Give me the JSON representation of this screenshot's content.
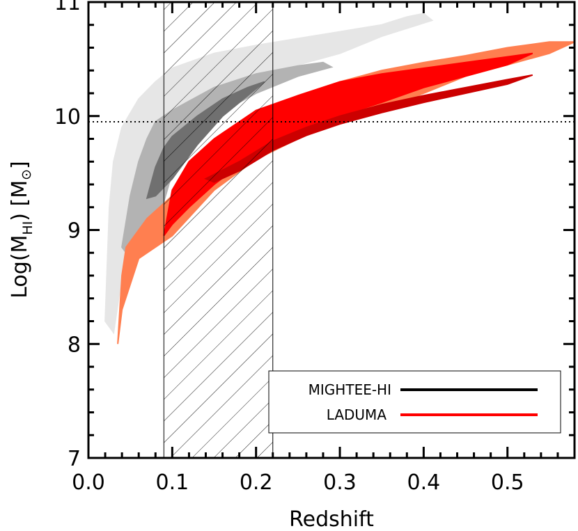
{
  "chart_data": {
    "type": "area",
    "xlabel": "Redshift",
    "ylabel_main": "Log(M",
    "ylabel_sub": "HI",
    "ylabel_tail": ")  [M",
    "ylabel_symbol": "⊙",
    "ylabel_close": "]",
    "xlim": [
      0.0,
      0.58
    ],
    "ylim": [
      7,
      11
    ],
    "xticks": [
      0.0,
      0.1,
      0.2,
      0.3,
      0.4,
      0.5
    ],
    "xtick_labels": [
      "0.0",
      "0.1",
      "0.2",
      "0.3",
      "0.4",
      "0.5"
    ],
    "yticks": [
      7,
      8,
      9,
      10,
      11
    ],
    "ytick_labels": [
      "7",
      "8",
      "9",
      "10",
      "11"
    ],
    "hline": {
      "y": 9.95,
      "style": "dotted"
    },
    "hatched_region": {
      "x": [
        0.09,
        0.22
      ]
    },
    "series": [
      {
        "name": "MIGHTEE-HI",
        "color": "#000000",
        "bands": [
          {
            "level": "outer",
            "color": "#e6e6e6",
            "upper": [
              [
                0.02,
                8.2
              ],
              [
                0.025,
                9.2
              ],
              [
                0.03,
                9.6
              ],
              [
                0.04,
                9.9
              ],
              [
                0.06,
                10.15
              ],
              [
                0.08,
                10.3
              ],
              [
                0.1,
                10.42
              ],
              [
                0.15,
                10.55
              ],
              [
                0.2,
                10.62
              ],
              [
                0.25,
                10.68
              ],
              [
                0.3,
                10.74
              ],
              [
                0.35,
                10.8
              ],
              [
                0.38,
                10.87
              ],
              [
                0.4,
                10.9
              ],
              [
                0.41,
                10.84
              ]
            ],
            "lower": [
              [
                0.41,
                10.84
              ],
              [
                0.35,
                10.7
              ],
              [
                0.3,
                10.55
              ],
              [
                0.25,
                10.45
              ],
              [
                0.2,
                10.33
              ],
              [
                0.15,
                10.2
              ],
              [
                0.1,
                9.95
              ],
              [
                0.07,
                9.5
              ],
              [
                0.05,
                9.0
              ],
              [
                0.04,
                8.6
              ],
              [
                0.03,
                8.1
              ]
            ]
          },
          {
            "level": "middle",
            "color": "#b3b3b3",
            "upper": [
              [
                0.04,
                8.85
              ],
              [
                0.05,
                9.3
              ],
              [
                0.06,
                9.6
              ],
              [
                0.07,
                9.8
              ],
              [
                0.08,
                9.95
              ],
              [
                0.1,
                10.05
              ],
              [
                0.15,
                10.25
              ],
              [
                0.2,
                10.37
              ],
              [
                0.25,
                10.44
              ],
              [
                0.28,
                10.47
              ],
              [
                0.29,
                10.43
              ]
            ],
            "lower": [
              [
                0.29,
                10.43
              ],
              [
                0.25,
                10.35
              ],
              [
                0.2,
                10.2
              ],
              [
                0.15,
                10.0
              ],
              [
                0.12,
                9.75
              ],
              [
                0.1,
                9.5
              ],
              [
                0.09,
                9.25
              ],
              [
                0.08,
                9.05
              ],
              [
                0.06,
                8.9
              ],
              [
                0.045,
                8.8
              ]
            ]
          },
          {
            "level": "inner",
            "color": "#707070",
            "upper": [
              [
                0.07,
                9.28
              ],
              [
                0.08,
                9.55
              ],
              [
                0.09,
                9.72
              ],
              [
                0.1,
                9.82
              ],
              [
                0.13,
                10.0
              ],
              [
                0.16,
                10.15
              ],
              [
                0.19,
                10.25
              ],
              [
                0.21,
                10.3
              ]
            ],
            "lower": [
              [
                0.21,
                10.3
              ],
              [
                0.19,
                10.18
              ],
              [
                0.16,
                10.0
              ],
              [
                0.13,
                9.75
              ],
              [
                0.11,
                9.55
              ],
              [
                0.1,
                9.45
              ],
              [
                0.08,
                9.3
              ]
            ]
          }
        ]
      },
      {
        "name": "LADUMA",
        "color": "#ff0000",
        "bands": [
          {
            "level": "outer",
            "color": "#ff7f50",
            "upper": [
              [
                0.035,
                8.0
              ],
              [
                0.04,
                8.6
              ],
              [
                0.045,
                8.85
              ],
              [
                0.07,
                9.1
              ],
              [
                0.1,
                9.3
              ],
              [
                0.13,
                9.6
              ],
              [
                0.16,
                9.85
              ],
              [
                0.2,
                10.0
              ],
              [
                0.25,
                10.18
              ],
              [
                0.3,
                10.3
              ],
              [
                0.35,
                10.4
              ],
              [
                0.4,
                10.47
              ],
              [
                0.45,
                10.53
              ],
              [
                0.5,
                10.6
              ],
              [
                0.55,
                10.65
              ],
              [
                0.58,
                10.65
              ]
            ],
            "lower": [
              [
                0.58,
                10.65
              ],
              [
                0.55,
                10.55
              ],
              [
                0.5,
                10.45
              ],
              [
                0.45,
                10.35
              ],
              [
                0.4,
                10.2
              ],
              [
                0.35,
                10.05
              ],
              [
                0.3,
                9.95
              ],
              [
                0.25,
                9.8
              ],
              [
                0.2,
                9.62
              ],
              [
                0.15,
                9.35
              ],
              [
                0.1,
                8.95
              ],
              [
                0.06,
                8.75
              ],
              [
                0.04,
                8.3
              ],
              [
                0.035,
                8.0
              ]
            ]
          },
          {
            "level": "middle",
            "color": "#ff0000",
            "upper": [
              [
                0.09,
                8.95
              ],
              [
                0.1,
                9.35
              ],
              [
                0.12,
                9.6
              ],
              [
                0.15,
                9.8
              ],
              [
                0.2,
                10.05
              ],
              [
                0.25,
                10.18
              ],
              [
                0.3,
                10.3
              ],
              [
                0.35,
                10.37
              ],
              [
                0.4,
                10.42
              ],
              [
                0.45,
                10.47
              ],
              [
                0.5,
                10.52
              ],
              [
                0.53,
                10.55
              ]
            ],
            "lower": [
              [
                0.53,
                10.55
              ],
              [
                0.5,
                10.45
              ],
              [
                0.45,
                10.35
              ],
              [
                0.4,
                10.25
              ],
              [
                0.35,
                10.12
              ],
              [
                0.3,
                10.0
              ],
              [
                0.25,
                9.85
              ],
              [
                0.2,
                9.68
              ],
              [
                0.15,
                9.4
              ],
              [
                0.12,
                9.2
              ],
              [
                0.1,
                9.05
              ]
            ]
          },
          {
            "level": "inner",
            "color": "#cc0000",
            "upper": [
              [
                0.14,
                9.45
              ],
              [
                0.18,
                9.6
              ],
              [
                0.22,
                9.78
              ],
              [
                0.26,
                9.9
              ],
              [
                0.3,
                10.0
              ],
              [
                0.35,
                10.1
              ],
              [
                0.4,
                10.18
              ],
              [
                0.45,
                10.25
              ],
              [
                0.5,
                10.32
              ],
              [
                0.53,
                10.36
              ]
            ],
            "lower": [
              [
                0.53,
                10.36
              ],
              [
                0.5,
                10.28
              ],
              [
                0.45,
                10.2
              ],
              [
                0.4,
                10.12
              ],
              [
                0.35,
                10.03
              ],
              [
                0.3,
                9.93
              ],
              [
                0.26,
                9.83
              ],
              [
                0.22,
                9.7
              ],
              [
                0.18,
                9.52
              ],
              [
                0.15,
                9.42
              ]
            ]
          }
        ]
      }
    ],
    "legend": {
      "placement": "bottom-right",
      "items": [
        {
          "label": "MIGHTEE-HI",
          "color": "#000000"
        },
        {
          "label": "LADUMA",
          "color": "#ff0000"
        }
      ]
    }
  }
}
